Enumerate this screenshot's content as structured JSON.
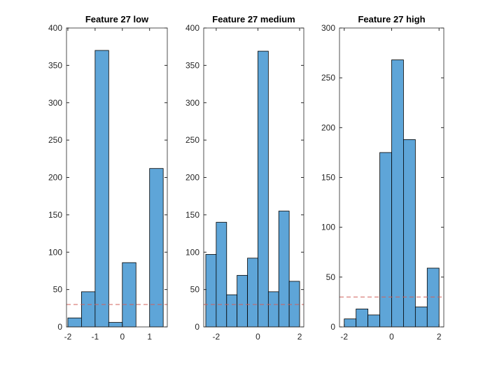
{
  "chart_data": [
    {
      "type": "histogram",
      "title": "Feature 27 low",
      "bins": [
        -2,
        -1.5,
        -1,
        -0.5,
        0,
        0.5,
        1,
        1.5
      ],
      "counts": [
        12,
        47,
        370,
        6,
        86,
        0,
        212
      ],
      "color": "#5ea5d8",
      "xlim": [
        -2.05,
        1.65
      ],
      "ylim": [
        0,
        400
      ],
      "xticks": [
        -2,
        -1,
        0,
        1
      ],
      "yticks": [
        0,
        50,
        100,
        150,
        200,
        250,
        300,
        350,
        400
      ],
      "ref_line": 30,
      "ref_color": "#d0605a"
    },
    {
      "type": "histogram",
      "title": "Feature 27 medium",
      "bins": [
        -2.5,
        -2,
        -1.5,
        -1,
        -0.5,
        0,
        0.5,
        1,
        1.5,
        2
      ],
      "counts": [
        97,
        140,
        43,
        69,
        92,
        369,
        47,
        155,
        61
      ],
      "color": "#5ea5d8",
      "xlim": [
        -2.6,
        2.2
      ],
      "ylim": [
        0,
        400
      ],
      "xticks": [
        -2,
        0,
        2
      ],
      "yticks": [
        0,
        50,
        100,
        150,
        200,
        250,
        300,
        350,
        400
      ],
      "ref_line": 30,
      "ref_color": "#d0605a"
    },
    {
      "type": "histogram",
      "title": "Feature 27 high",
      "bins": [
        -2,
        -1.5,
        -1,
        -0.5,
        0,
        0.5,
        1,
        1.5,
        2
      ],
      "counts": [
        8,
        18,
        12,
        175,
        268,
        188,
        20,
        59
      ],
      "color": "#5ea5d8",
      "xlim": [
        -2.2,
        2.2
      ],
      "ylim": [
        0,
        300
      ],
      "xticks": [
        -2,
        0,
        2
      ],
      "yticks": [
        0,
        50,
        100,
        150,
        200,
        250,
        300
      ],
      "ref_line": 30,
      "ref_color": "#d0605a"
    }
  ]
}
